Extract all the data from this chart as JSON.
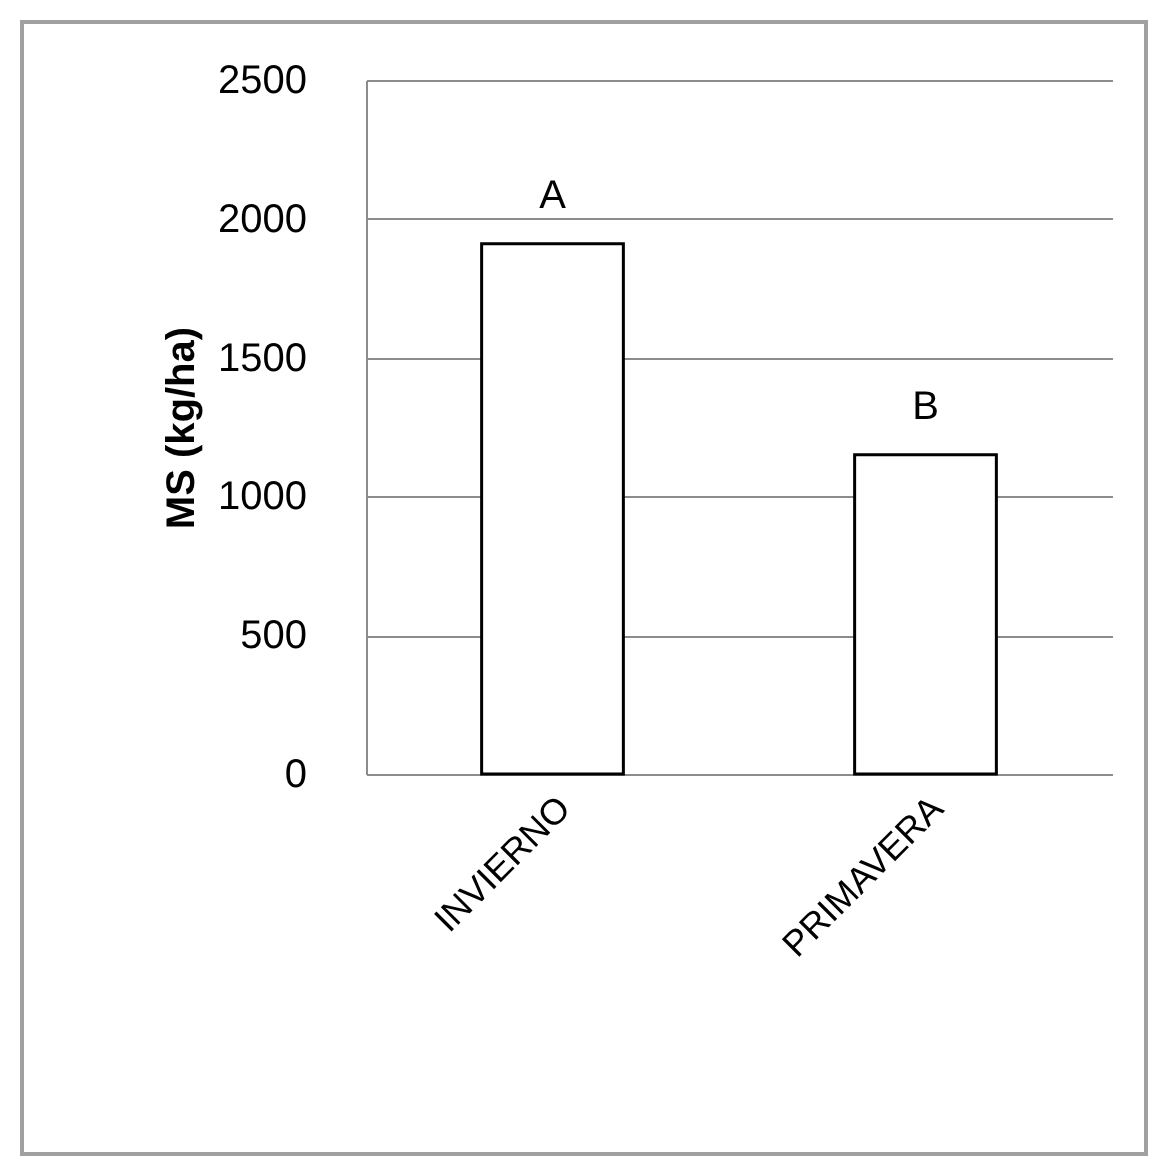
{
  "chart_data": {
    "type": "bar",
    "ylabel": "MS (kg/ha)",
    "categories": [
      "INVIERNO",
      "PRIMAVERA"
    ],
    "values": [
      1910,
      1150
    ],
    "color": "#ffffff",
    "ylim": [
      0,
      2500
    ],
    "yticks": [
      0,
      500,
      1000,
      1500,
      2000,
      2500
    ],
    "grid": "y",
    "annotations": [
      {
        "text": "A",
        "x": "INVIERNO",
        "y": 1910
      },
      {
        "text": "B",
        "x": "PRIMAVERA",
        "y": 1150
      }
    ]
  }
}
